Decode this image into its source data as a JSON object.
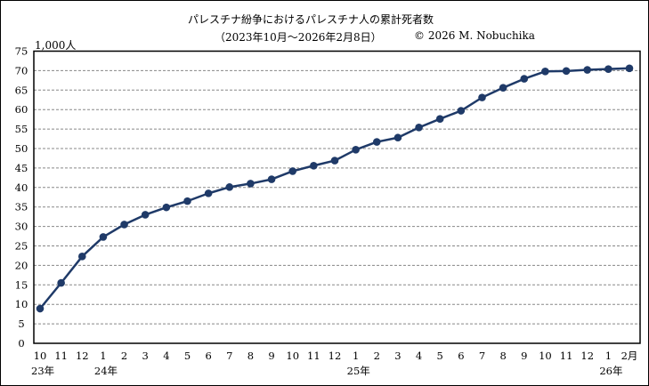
{
  "chart_data": {
    "type": "line",
    "title": "パレスチナ紛争におけるパレスチナ人の累計死者数",
    "subtitle": "（2023年10月～2026年2月8日）",
    "credit": "© 2026 M. Nobuchika",
    "ylabel": "1,000人",
    "ylim": [
      0,
      75
    ],
    "yticks": [
      0,
      5,
      10,
      15,
      20,
      25,
      30,
      35,
      40,
      45,
      50,
      55,
      60,
      65,
      70,
      75
    ],
    "grid": true,
    "legend": "none",
    "categories": [
      "10",
      "11",
      "12",
      "1",
      "2",
      "3",
      "4",
      "5",
      "6",
      "7",
      "8",
      "9",
      "10",
      "11",
      "12",
      "1",
      "2",
      "3",
      "4",
      "5",
      "6",
      "7",
      "8",
      "9",
      "10",
      "11",
      "12",
      "1",
      "2月"
    ],
    "year_labels": [
      {
        "index": 0,
        "label": "23年"
      },
      {
        "index": 3,
        "label": "24年"
      },
      {
        "index": 15,
        "label": "25年"
      },
      {
        "index": 27,
        "label": "26年"
      }
    ],
    "values": [
      8.9,
      15.5,
      22.3,
      27.3,
      30.5,
      33.0,
      34.9,
      36.5,
      38.5,
      40.1,
      41.0,
      42.1,
      44.2,
      45.6,
      46.9,
      49.7,
      51.7,
      52.8,
      55.4,
      57.6,
      59.7,
      63.1,
      65.6,
      67.9,
      69.8,
      69.9,
      70.2,
      70.4,
      70.6
    ],
    "line_color": "#1f3a68"
  }
}
